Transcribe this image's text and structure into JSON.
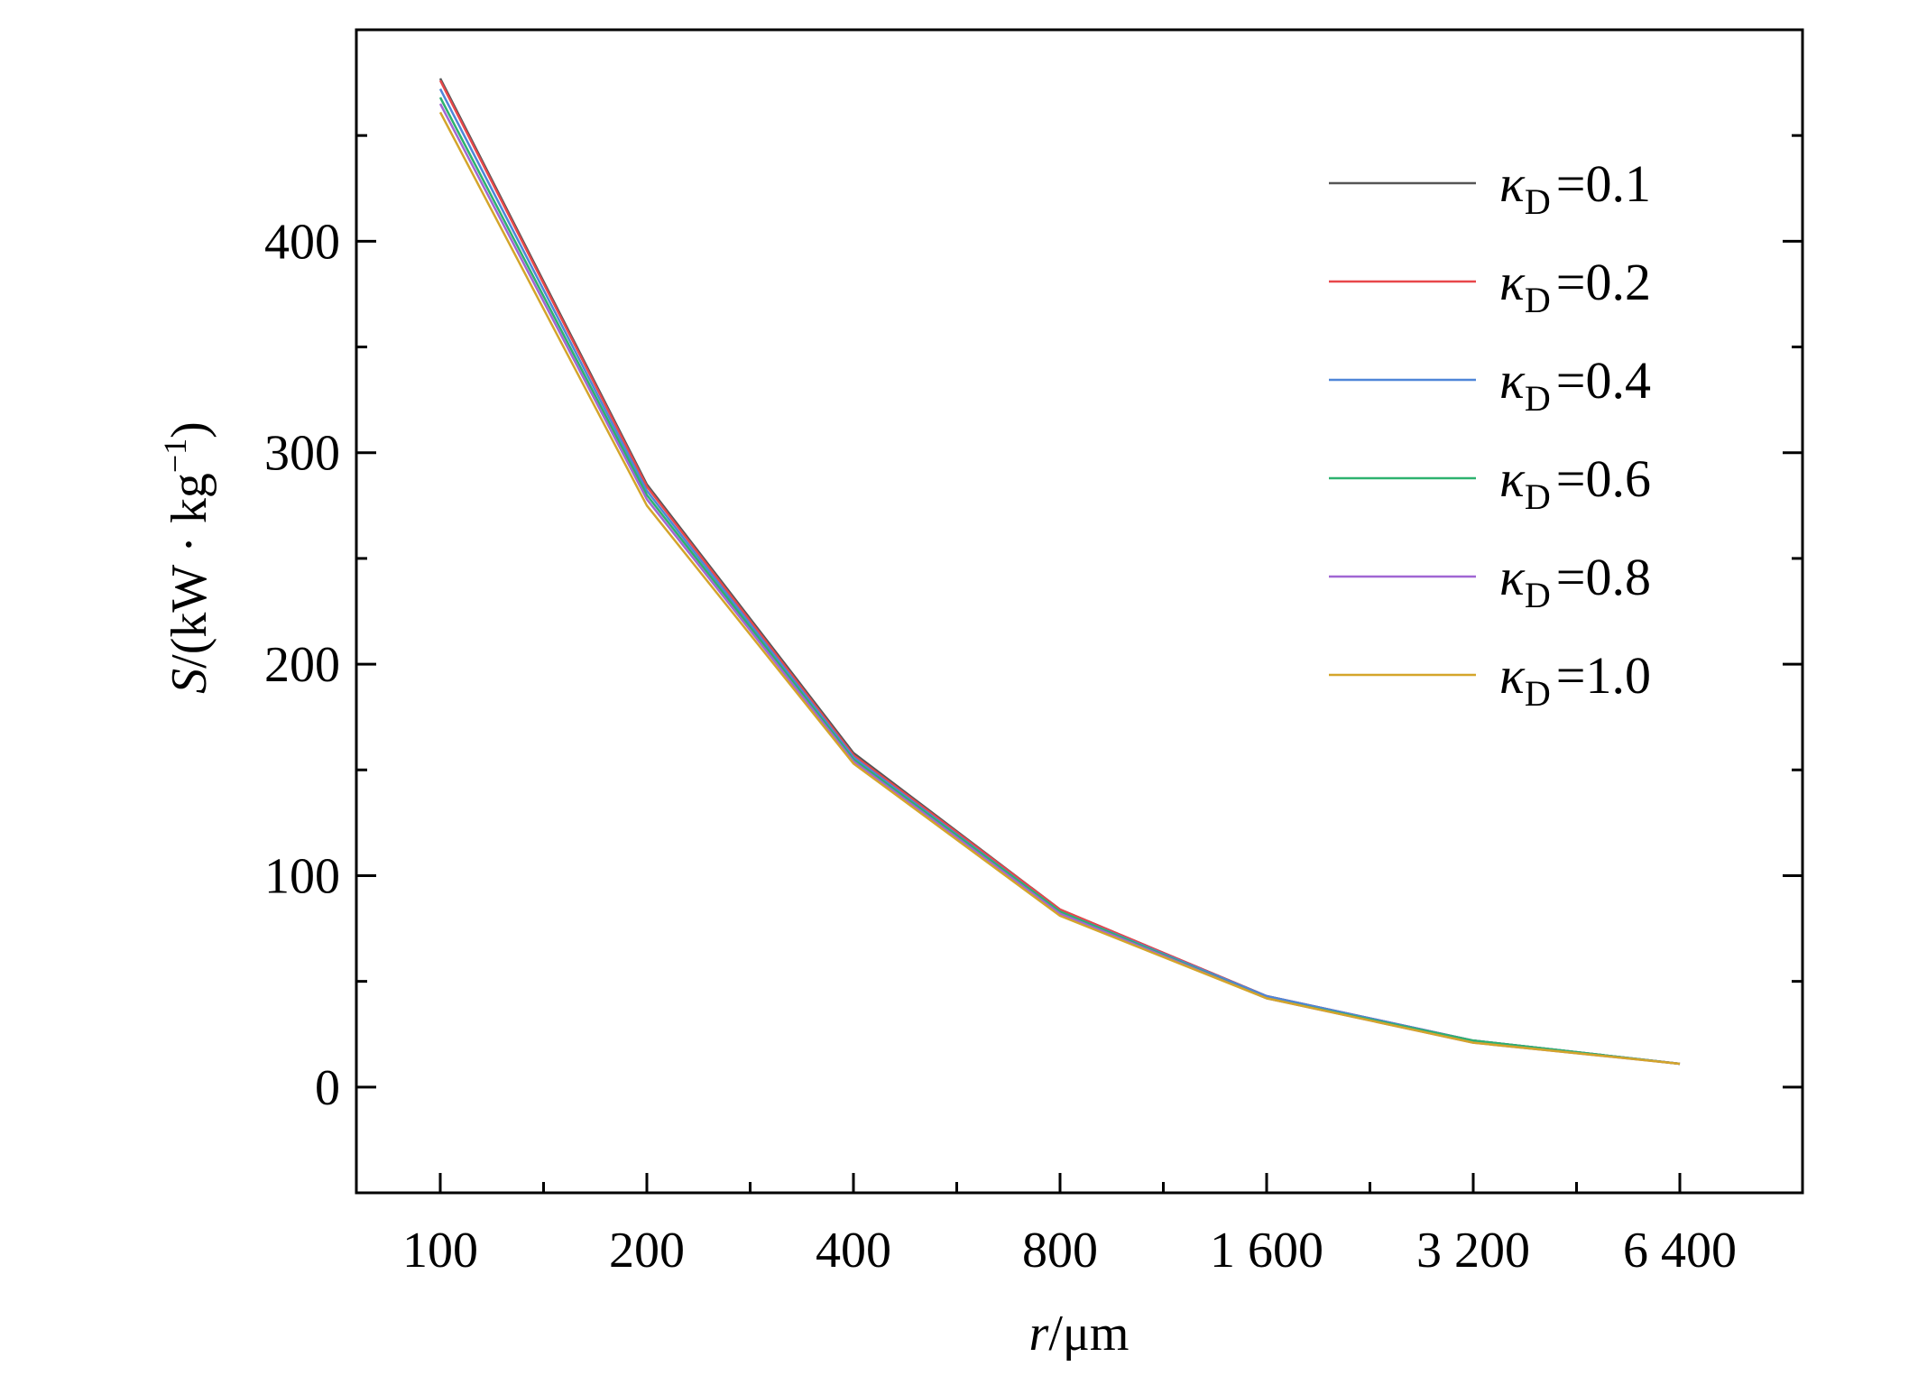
{
  "chart_data": {
    "type": "line",
    "title": "",
    "xlabel_italic": "r",
    "xlabel_rest": "/μm",
    "ylabel_italic": "S",
    "ylabel_rest": "/(kW · kg",
    "ylabel_sup": "−1",
    "ylabel_close": ")",
    "x_scale": "log2",
    "x": [
      100,
      200,
      400,
      800,
      1600,
      3200,
      6400
    ],
    "x_tick_labels": [
      "100",
      "200",
      "400",
      "800",
      "1 600",
      "3 200",
      "6 400"
    ],
    "y_ticks": [
      0,
      100,
      200,
      300,
      400
    ],
    "ylim": [
      -50,
      500
    ],
    "legend_position": "top-right",
    "series": [
      {
        "name": "0.1",
        "color": "#555555",
        "values": [
          477,
          285,
          158,
          84,
          43,
          22,
          11
        ]
      },
      {
        "name": "0.2",
        "color": "#e8474a",
        "values": [
          476,
          284,
          157,
          84,
          43,
          22,
          11
        ]
      },
      {
        "name": "0.4",
        "color": "#4f86d8",
        "values": [
          472,
          282,
          156,
          83,
          43,
          22,
          11
        ]
      },
      {
        "name": "0.6",
        "color": "#2db26f",
        "values": [
          468,
          280,
          155,
          83,
          42,
          22,
          11
        ]
      },
      {
        "name": "0.8",
        "color": "#a066d3",
        "values": [
          465,
          278,
          154,
          82,
          42,
          21,
          11
        ]
      },
      {
        "name": "1.0",
        "color": "#d4a52a",
        "values": [
          461,
          275,
          153,
          81,
          42,
          21,
          11
        ]
      }
    ],
    "legend_symbol": "κ",
    "legend_subscript": "D",
    "legend_eq": "="
  }
}
